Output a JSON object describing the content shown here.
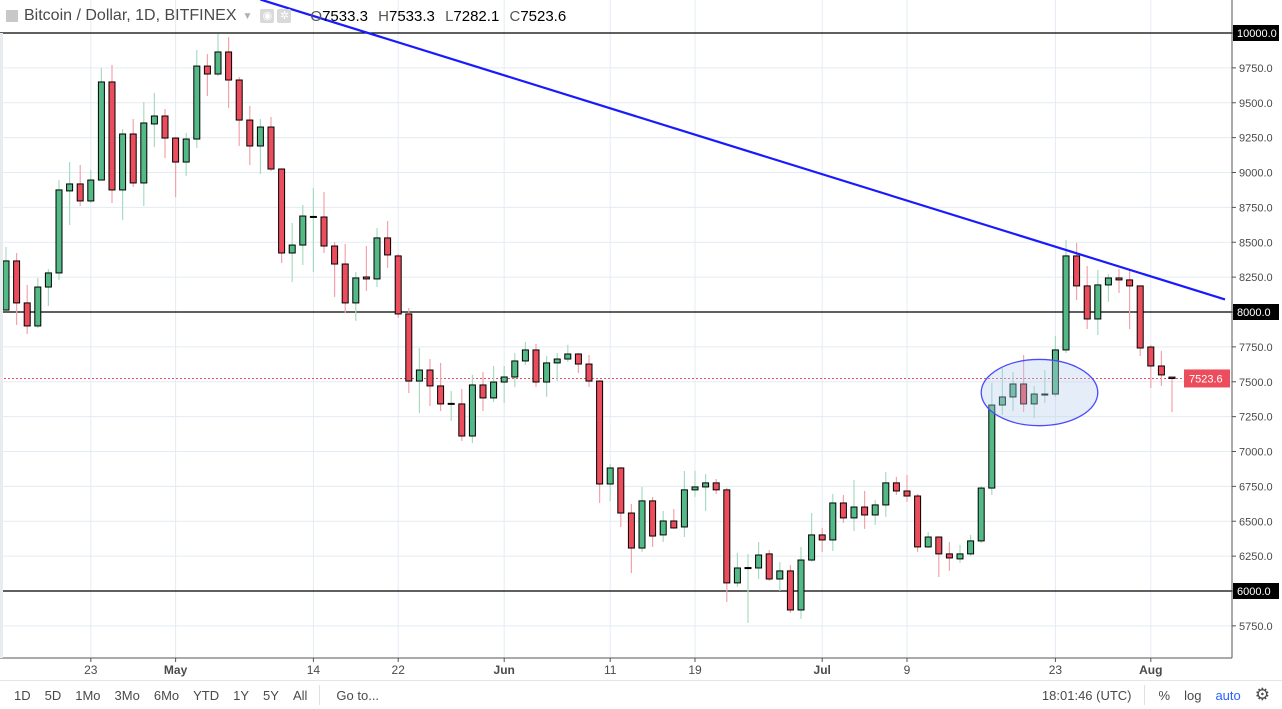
{
  "header": {
    "symbol_title": "Bitcoin / Dollar, 1D, BITFINEX",
    "ohlc": {
      "o_label": "O",
      "o": "7533.3",
      "h_label": "H",
      "h": "7533.3",
      "l_label": "L",
      "l": "7282.1",
      "c_label": "C",
      "c": "7523.6"
    }
  },
  "bottom_bar": {
    "ranges": [
      "1D",
      "5D",
      "1Mo",
      "3Mo",
      "6Mo",
      "YTD",
      "1Y",
      "5Y",
      "All"
    ],
    "goto": "Go to...",
    "clock": "18:01:46 (UTC)",
    "percent": "%",
    "log": "log",
    "auto": "auto"
  },
  "colors": {
    "up": "#53b987",
    "down": "#eb4d5c",
    "up_wick": "#a8dcc2",
    "down_wick": "#f4a3ab",
    "trendline": "#1a1aff",
    "hline": "#000000",
    "last_price": "#eb4d5c",
    "grid": "#e3ecf3"
  },
  "chart_data": {
    "type": "candlestick",
    "ylim": [
      5600,
      10250
    ],
    "y_ticks": [
      "5750.0",
      "6000.0",
      "6250.0",
      "6500.0",
      "6750.0",
      "7000.0",
      "7250.0",
      "7500.0",
      "7750.0",
      "8000.0",
      "8250.0",
      "8500.0",
      "8750.0",
      "9000.0",
      "9250.0",
      "9500.0",
      "9750.0",
      "10000.0"
    ],
    "x_ticks": [
      {
        "date": "04-23",
        "label": "23",
        "bold": false
      },
      {
        "date": "05-01",
        "label": "May",
        "bold": true
      },
      {
        "date": "05-14",
        "label": "14",
        "bold": false
      },
      {
        "date": "05-22",
        "label": "22",
        "bold": false
      },
      {
        "date": "06-01",
        "label": "Jun",
        "bold": true
      },
      {
        "date": "06-11",
        "label": "11",
        "bold": false
      },
      {
        "date": "06-19",
        "label": "19",
        "bold": false
      },
      {
        "date": "07-01",
        "label": "Jul",
        "bold": true
      },
      {
        "date": "07-09",
        "label": "9",
        "bold": false
      },
      {
        "date": "07-23",
        "label": "23",
        "bold": false
      },
      {
        "date": "08-01",
        "label": "Aug",
        "bold": true
      }
    ],
    "grid": true,
    "horizontal_lines": [
      {
        "price": 10000,
        "label": "10000.0"
      },
      {
        "price": 8000,
        "label": "8000.0"
      },
      {
        "price": 6000,
        "label": "6000.0"
      }
    ],
    "last_price": {
      "price": 7523.6,
      "label": "7523.6"
    },
    "trendline": {
      "from": {
        "date": "05-09",
        "price": 10240
      },
      "to": {
        "date": "08-08",
        "price": 8090
      }
    },
    "ellipse": {
      "date_from": "07-16",
      "date_to": "07-27",
      "price_low": 7185,
      "price_high": 7660
    },
    "candle_fields": [
      "date",
      "open",
      "high",
      "low",
      "close"
    ],
    "candles": [
      [
        "04-15",
        8014,
        8466,
        8010,
        8366
      ],
      [
        "04-16",
        8366,
        8423,
        7907,
        8065
      ],
      [
        "04-17",
        8065,
        8194,
        7842,
        7900
      ],
      [
        "04-18",
        7900,
        8244,
        7886,
        8179
      ],
      [
        "04-19",
        8179,
        8308,
        8043,
        8280
      ],
      [
        "04-20",
        8280,
        8946,
        8230,
        8875
      ],
      [
        "04-21",
        8868,
        9075,
        8624,
        8918
      ],
      [
        "04-22",
        8918,
        9054,
        8760,
        8796
      ],
      [
        "04-23",
        8796,
        9018,
        8781,
        8946
      ],
      [
        "04-24",
        8946,
        9749,
        8946,
        9649
      ],
      [
        "04-25",
        9649,
        9771,
        8781,
        8875
      ],
      [
        "04-26",
        8875,
        9312,
        8660,
        9276
      ],
      [
        "04-27",
        9276,
        9384,
        8896,
        8925
      ],
      [
        "04-28",
        8925,
        9505,
        8760,
        9355
      ],
      [
        "04-29",
        9348,
        9570,
        9183,
        9405
      ],
      [
        "04-30",
        9405,
        9455,
        9104,
        9247
      ],
      [
        "05-01",
        9247,
        9255,
        8824,
        9075
      ],
      [
        "05-02",
        9075,
        9283,
        8975,
        9240
      ],
      [
        "05-03",
        9240,
        9878,
        9176,
        9763
      ],
      [
        "05-04",
        9763,
        9849,
        9548,
        9706
      ],
      [
        "05-05",
        9706,
        9993,
        9690,
        9864
      ],
      [
        "05-06",
        9864,
        9971,
        9462,
        9663
      ],
      [
        "05-07",
        9663,
        9685,
        9190,
        9376
      ],
      [
        "05-08",
        9376,
        9477,
        9054,
        9190
      ],
      [
        "05-09",
        9190,
        9384,
        8989,
        9326
      ],
      [
        "05-10",
        9326,
        9398,
        9010,
        9025
      ],
      [
        "05-11",
        9025,
        9030,
        8351,
        8423
      ],
      [
        "05-12",
        8423,
        8638,
        8215,
        8480
      ],
      [
        "05-13",
        8480,
        8767,
        8337,
        8688
      ],
      [
        "05-14",
        8681,
        8889,
        8287,
        8685
      ],
      [
        "05-15",
        8681,
        8860,
        8423,
        8473
      ],
      [
        "05-16",
        8473,
        8502,
        8108,
        8344
      ],
      [
        "05-17",
        8344,
        8488,
        7993,
        8065
      ],
      [
        "05-18",
        8065,
        8287,
        7936,
        8244
      ],
      [
        "05-19",
        8251,
        8473,
        8151,
        8237
      ],
      [
        "05-20",
        8237,
        8602,
        8179,
        8531
      ],
      [
        "05-21",
        8531,
        8652,
        8316,
        8409
      ],
      [
        "05-22",
        8402,
        8416,
        7957,
        7986
      ],
      [
        "05-23",
        7986,
        8029,
        7419,
        7505
      ],
      [
        "05-24",
        7505,
        7742,
        7276,
        7584
      ],
      [
        "05-25",
        7584,
        7663,
        7326,
        7470
      ],
      [
        "05-26",
        7470,
        7635,
        7290,
        7341
      ],
      [
        "05-27",
        7341,
        7434,
        7219,
        7345
      ],
      [
        "05-28",
        7341,
        7448,
        7075,
        7111
      ],
      [
        "05-29",
        7111,
        7549,
        7061,
        7477
      ],
      [
        "05-30",
        7477,
        7570,
        7290,
        7384
      ],
      [
        "05-31",
        7384,
        7613,
        7355,
        7498
      ],
      [
        "06-01",
        7498,
        7613,
        7348,
        7534
      ],
      [
        "06-02",
        7534,
        7706,
        7463,
        7649
      ],
      [
        "06-03",
        7649,
        7785,
        7620,
        7728
      ],
      [
        "06-04",
        7728,
        7771,
        7463,
        7498
      ],
      [
        "06-05",
        7498,
        7685,
        7391,
        7635
      ],
      [
        "06-06",
        7635,
        7706,
        7505,
        7663
      ],
      [
        "06-07",
        7663,
        7764,
        7642,
        7699
      ],
      [
        "06-08",
        7699,
        7706,
        7563,
        7627
      ],
      [
        "06-09",
        7627,
        7692,
        7463,
        7505
      ],
      [
        "06-10",
        7505,
        7510,
        6631,
        6767
      ],
      [
        "06-11",
        6767,
        6911,
        6645,
        6882
      ],
      [
        "06-12",
        6882,
        6890,
        6459,
        6559
      ],
      [
        "06-13",
        6559,
        6624,
        6129,
        6308
      ],
      [
        "06-14",
        6308,
        6746,
        6280,
        6646
      ],
      [
        "06-15",
        6646,
        6674,
        6316,
        6394
      ],
      [
        "06-16",
        6402,
        6574,
        6351,
        6502
      ],
      [
        "06-17",
        6502,
        6588,
        6445,
        6452
      ],
      [
        "06-18",
        6459,
        6861,
        6387,
        6725
      ],
      [
        "06-19",
        6725,
        6861,
        6674,
        6746
      ],
      [
        "06-20",
        6746,
        6839,
        6574,
        6775
      ],
      [
        "06-21",
        6775,
        6803,
        6696,
        6725
      ],
      [
        "06-22",
        6725,
        6740,
        5921,
        6058
      ],
      [
        "06-23",
        6058,
        6273,
        6029,
        6165
      ],
      [
        "06-24",
        6165,
        6266,
        5771,
        6168
      ],
      [
        "06-25",
        6165,
        6351,
        6086,
        6258
      ],
      [
        "06-26",
        6266,
        6294,
        6072,
        6086
      ],
      [
        "06-27",
        6086,
        6208,
        6000,
        6144
      ],
      [
        "06-28",
        6144,
        6187,
        5843,
        5864
      ],
      [
        "06-29",
        5864,
        6316,
        5800,
        6222
      ],
      [
        "06-30",
        6222,
        6559,
        6210,
        6402
      ],
      [
        "07-01",
        6402,
        6452,
        6280,
        6366
      ],
      [
        "07-02",
        6366,
        6696,
        6287,
        6631
      ],
      [
        "07-03",
        6631,
        6688,
        6488,
        6524
      ],
      [
        "07-04",
        6524,
        6796,
        6430,
        6602
      ],
      [
        "07-05",
        6602,
        6717,
        6445,
        6545
      ],
      [
        "07-06",
        6545,
        6653,
        6474,
        6617
      ],
      [
        "07-07",
        6617,
        6853,
        6531,
        6775
      ],
      [
        "07-08",
        6775,
        6818,
        6688,
        6717
      ],
      [
        "07-09",
        6717,
        6832,
        6638,
        6681
      ],
      [
        "07-10",
        6681,
        6696,
        6280,
        6316
      ],
      [
        "07-11",
        6316,
        6423,
        6308,
        6387
      ],
      [
        "07-12",
        6387,
        6390,
        6100,
        6266
      ],
      [
        "07-13",
        6266,
        6351,
        6144,
        6237
      ],
      [
        "07-14",
        6230,
        6330,
        6201,
        6266
      ],
      [
        "07-15",
        6266,
        6402,
        6251,
        6359
      ],
      [
        "07-16",
        6359,
        6753,
        6344,
        6738
      ],
      [
        "07-17",
        6738,
        7491,
        6688,
        7333
      ],
      [
        "07-18",
        7333,
        7599,
        7262,
        7391
      ],
      [
        "07-19",
        7391,
        7570,
        7290,
        7484
      ],
      [
        "07-20",
        7484,
        7692,
        7283,
        7341
      ],
      [
        "07-21",
        7341,
        7470,
        7240,
        7412
      ],
      [
        "07-22",
        7405,
        7584,
        7348,
        7412
      ],
      [
        "07-23",
        7412,
        7828,
        7391,
        7728
      ],
      [
        "07-24",
        7728,
        8516,
        7706,
        8402
      ],
      [
        "07-25",
        8402,
        8495,
        8086,
        8187
      ],
      [
        "07-26",
        8187,
        8330,
        7878,
        7950
      ],
      [
        "07-27",
        7950,
        8301,
        7835,
        8194
      ],
      [
        "07-28",
        8194,
        8273,
        8072,
        8244
      ],
      [
        "07-29",
        8244,
        8308,
        8136,
        8230
      ],
      [
        "07-30",
        8230,
        8308,
        7878,
        8187
      ],
      [
        "07-31",
        8187,
        8190,
        7685,
        7742
      ],
      [
        "08-01",
        7749,
        7764,
        7455,
        7613
      ],
      [
        "08-02",
        7613,
        7721,
        7470,
        7549
      ],
      [
        "08-03",
        7533.3,
        7533.3,
        7282.1,
        7523.6
      ]
    ]
  }
}
